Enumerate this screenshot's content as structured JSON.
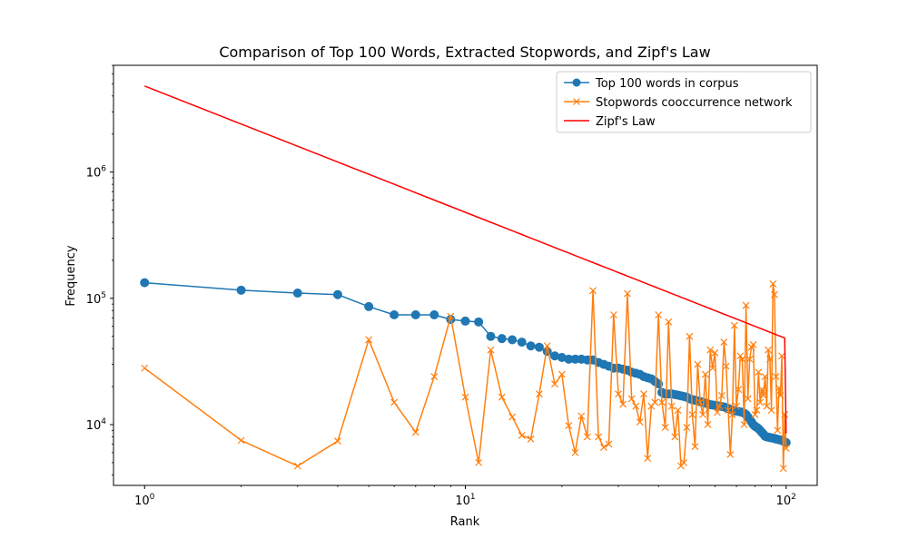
{
  "chart_data": {
    "type": "line",
    "title": "Comparison of Top 100 Words, Extracted Stopwords, and Zipf's Law",
    "xlabel": "Rank",
    "ylabel": "Frequency",
    "xscale": "log",
    "yscale": "log",
    "xlim": [
      0.8,
      125
    ],
    "ylim": [
      3300,
      7000000
    ],
    "grid": false,
    "legend_position": "top-right",
    "x_ticks": [
      {
        "value": 1,
        "base": "10",
        "exp": "0"
      },
      {
        "value": 10,
        "base": "10",
        "exp": "1"
      },
      {
        "value": 100,
        "base": "10",
        "exp": "2"
      }
    ],
    "y_ticks": [
      {
        "value": 10000,
        "base": "10",
        "exp": "4"
      },
      {
        "value": 100000,
        "base": "10",
        "exp": "5"
      },
      {
        "value": 1000000,
        "base": "10",
        "exp": "6"
      }
    ],
    "series": [
      {
        "name": "Top 100 words in corpus",
        "color": "#1f77b4",
        "marker": "circle",
        "values": [
          133000,
          116000,
          110000,
          107000,
          86000,
          74000,
          74000,
          74000,
          68000,
          66000,
          65000,
          50000,
          48000,
          47000,
          45000,
          42000,
          41000,
          38000,
          35000,
          34000,
          33000,
          33000,
          33000,
          32500,
          32500,
          31000,
          30000,
          29000,
          28000,
          28000,
          27500,
          27000,
          26000,
          25500,
          25000,
          24000,
          23500,
          23000,
          22000,
          21000,
          18000,
          17500,
          17500,
          17500,
          17300,
          17100,
          16900,
          16700,
          16500,
          16000,
          15800,
          15600,
          15400,
          15200,
          15000,
          14800,
          14600,
          14400,
          14300,
          14200,
          14100,
          14000,
          13900,
          13800,
          13600,
          13400,
          13200,
          13000,
          12900,
          12800,
          12700,
          12600,
          12500,
          12300,
          12000,
          11500,
          11000,
          10500,
          10000,
          9700,
          9500,
          9300,
          9000,
          8700,
          8400,
          8100,
          8000,
          7950,
          7900,
          7850,
          7800,
          7750,
          7700,
          7650,
          7600,
          7550,
          7500,
          7400,
          7300,
          7200
        ]
      },
      {
        "name": "Stopwords cooccurrence network",
        "color": "#ff7f0e",
        "marker": "x",
        "values": [
          28000,
          7500,
          4700,
          7400,
          47000,
          15000,
          8700,
          24000,
          72000,
          16500,
          5000,
          39000,
          16500,
          11500,
          8200,
          7700,
          17500,
          42000,
          21000,
          25000,
          9800,
          6000,
          11700,
          8000,
          115000,
          8000,
          6600,
          7000,
          74000,
          17500,
          14500,
          109000,
          16000,
          14000,
          10500,
          17500,
          5400,
          14000,
          15000,
          74000,
          15000,
          9500,
          65000,
          14000,
          8000,
          13000,
          4700,
          5000,
          9500,
          50000,
          12000,
          6700,
          30000,
          15000,
          12000,
          25000,
          10000,
          39000,
          28000,
          37000,
          12500,
          14000,
          17000,
          45000,
          29000,
          13000,
          5800,
          12000,
          61000,
          14000,
          19000,
          35000,
          33000,
          10000,
          88000,
          16000,
          33000,
          41000,
          43000,
          12000,
          13000,
          26000,
          15000,
          19000,
          17000,
          24000,
          14000,
          39000,
          33000,
          13000,
          130000,
          107000,
          24000,
          9000,
          19500,
          17000,
          35000,
          4500,
          12000,
          6500
        ]
      },
      {
        "name": "Zipf's Law",
        "color": "#ff0000",
        "marker": "none",
        "values": [
          4800000,
          2400000,
          1600000,
          1200000,
          960000,
          800000,
          685714,
          600000,
          533333,
          480000,
          436364,
          400000,
          369231,
          342857,
          320000,
          300000,
          282353,
          266667,
          252632,
          240000,
          228571,
          218182,
          208696,
          200000,
          192000,
          184615,
          177778,
          171429,
          165517,
          160000,
          154839,
          150000,
          145455,
          141176,
          137143,
          133333,
          129730,
          126316,
          123077,
          120000,
          117073,
          114286,
          111628,
          109091,
          106667,
          104348,
          102128,
          100000,
          97959,
          96000,
          94118,
          92308,
          90566,
          88889,
          87273,
          85714,
          84211,
          82759,
          81356,
          80000,
          78689,
          77419,
          76190,
          75000,
          73846,
          72727,
          71642,
          70588,
          69565,
          68571,
          67606,
          66667,
          65753,
          64865,
          64000,
          63158,
          62338,
          61538,
          60759,
          60000,
          59259,
          58537,
          57831,
          57143,
          56471,
          55814,
          55172,
          54545,
          53933,
          53333,
          52747,
          52174,
          51613,
          51064,
          50526,
          50000,
          49485,
          48980,
          48485,
          8500
        ]
      }
    ]
  }
}
